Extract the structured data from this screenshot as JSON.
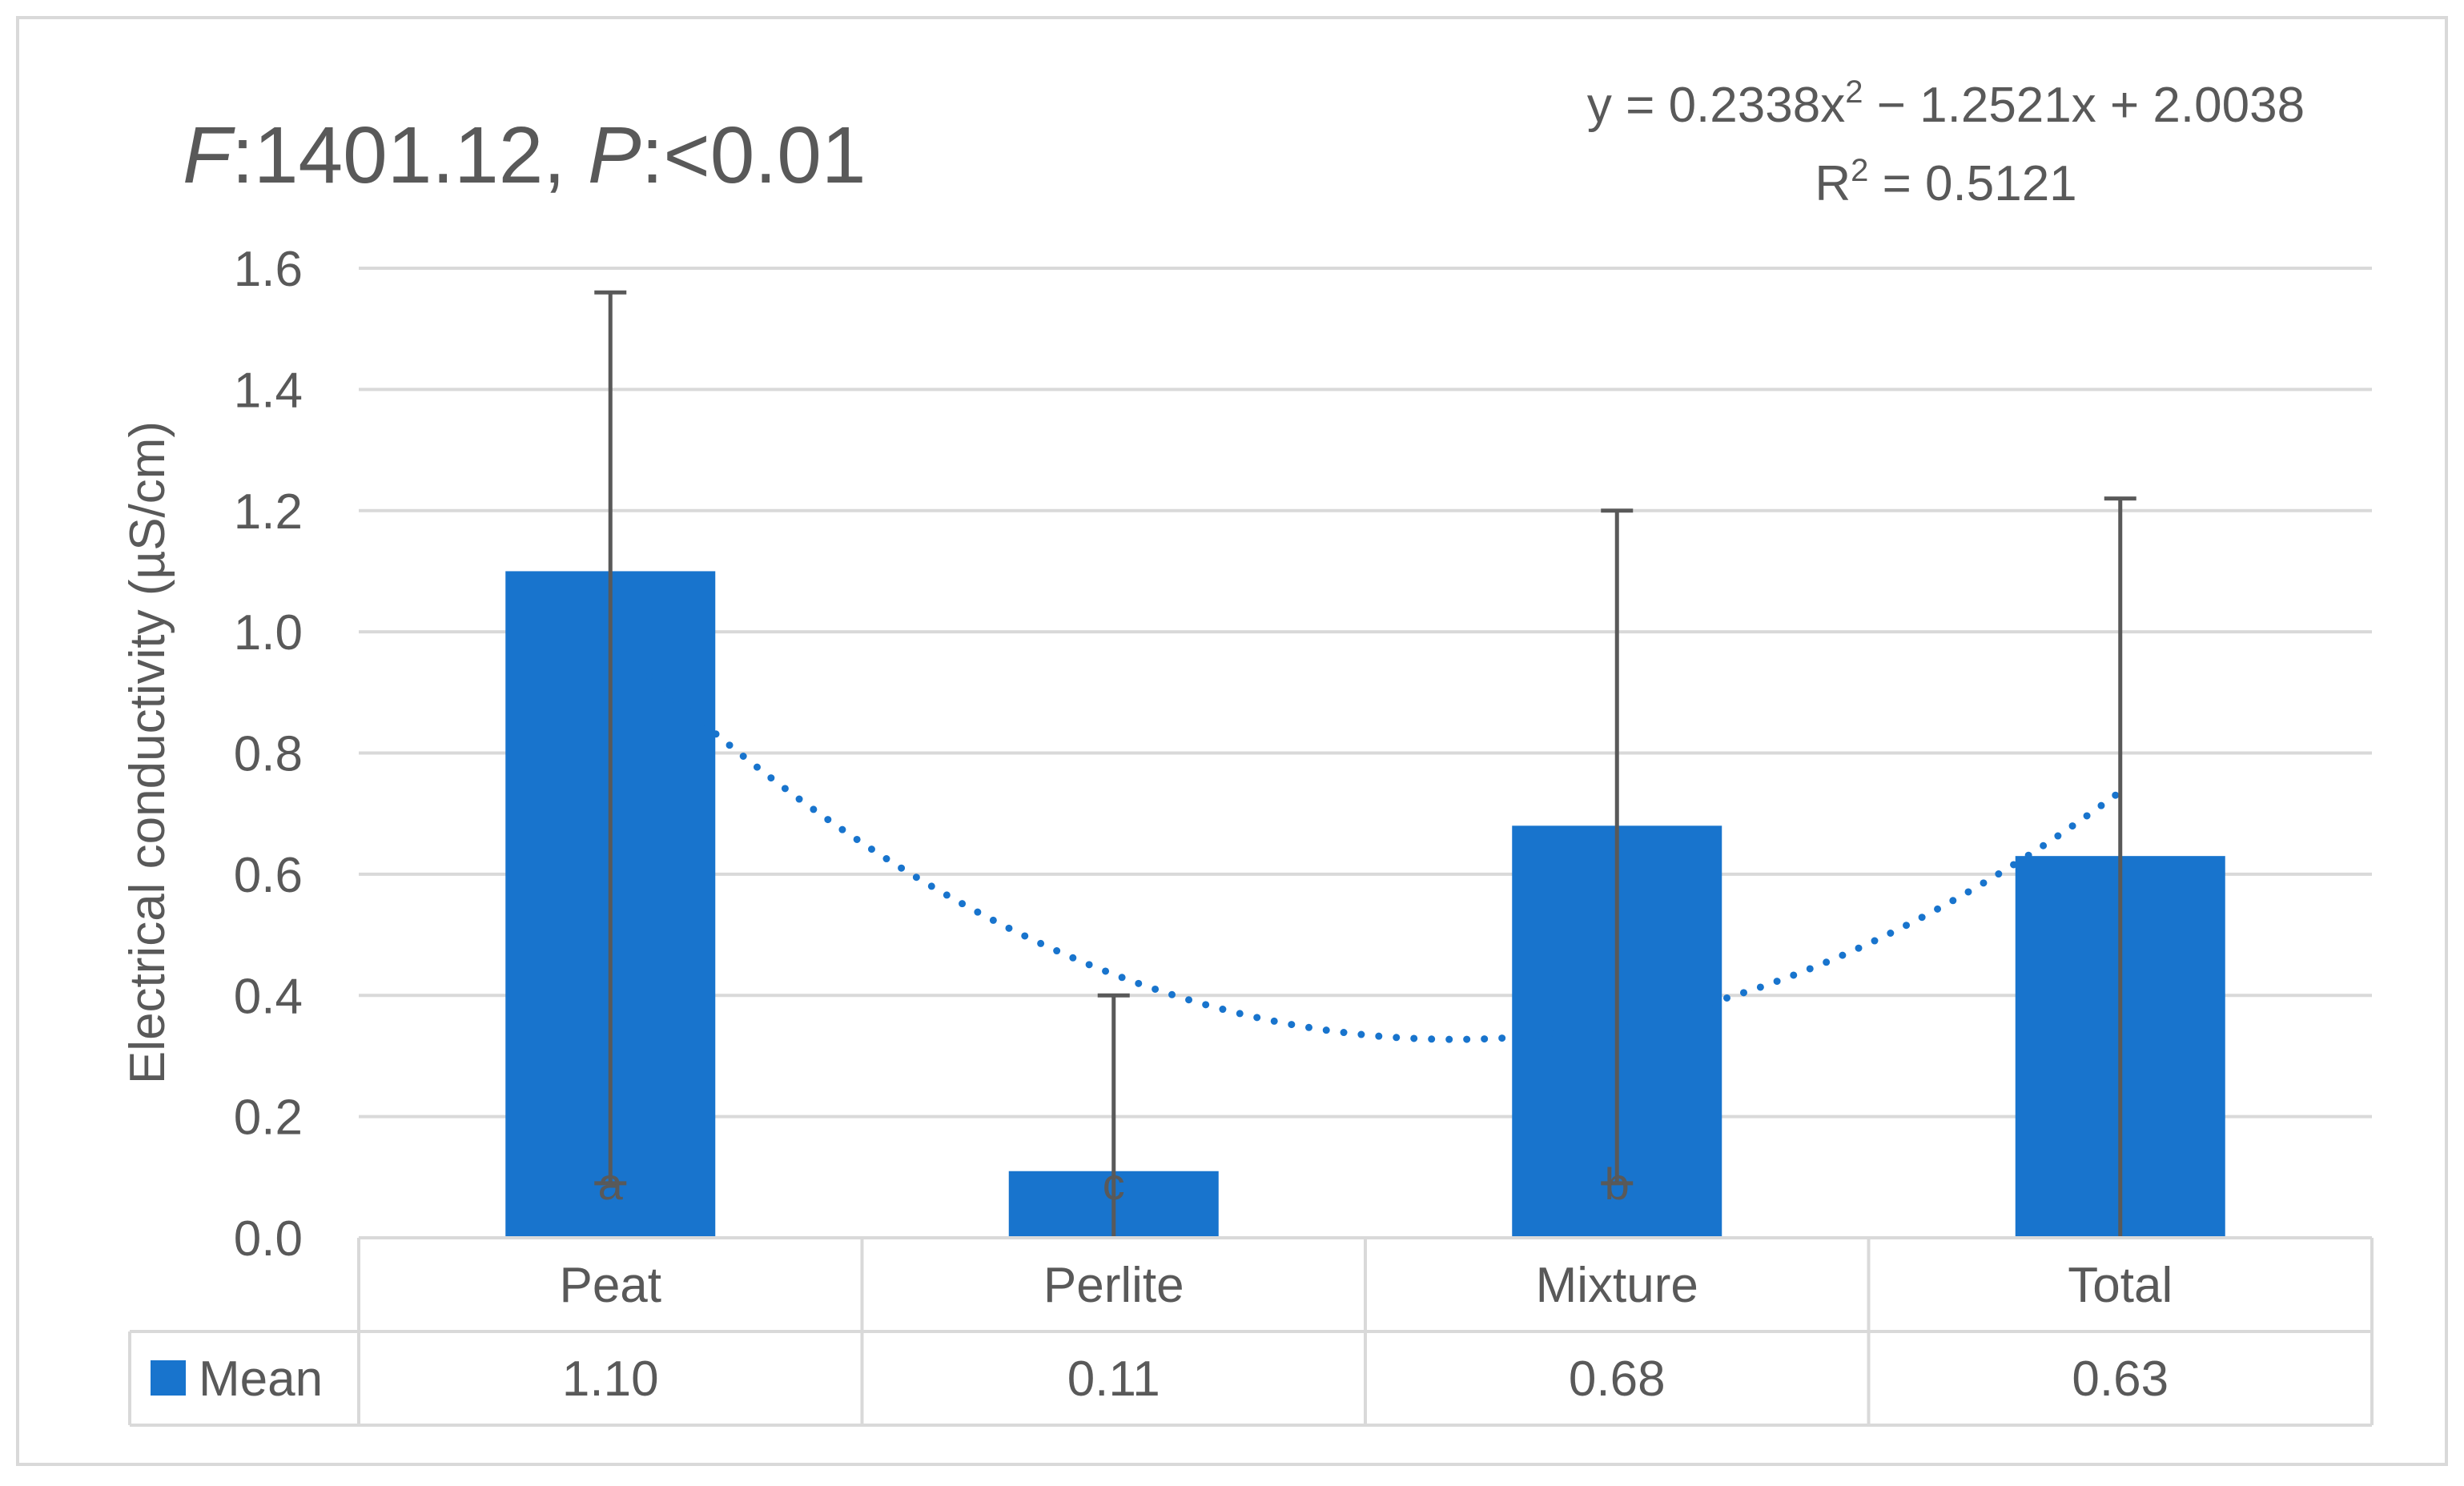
{
  "chart_data": {
    "type": "bar",
    "title_parts": {
      "f_letter": "F",
      "f_value": ":1401.12, ",
      "p_letter": "P",
      "p_value": ":<0.01"
    },
    "trendline": {
      "type": "polynomial",
      "order": 2,
      "coefficients": [
        0.2338,
        -1.2521,
        2.0038
      ],
      "equation_prefix": "y = 0.2338x",
      "equation_exp": "2",
      "equation_suffix": " − 1.2521x + 2.0038",
      "r2_prefix": "R",
      "r2_exp": "2",
      "r2_suffix": " = 0.5121",
      "color": "#1874CD"
    },
    "ylabel": "Electrical conductivity (µS/cm)",
    "ylim": [
      0,
      1.6
    ],
    "yticks": [
      0,
      0.2,
      0.4,
      0.6,
      0.8,
      1.0,
      1.2,
      1.4,
      1.6
    ],
    "ytick_labels": [
      "0.0",
      "0.2",
      "0.4",
      "0.6",
      "0.8",
      "1.0",
      "1.2",
      "1.4",
      "1.6"
    ],
    "categories": [
      "Peat",
      "Perlite",
      "Mixture",
      "Total"
    ],
    "series": [
      {
        "name": "Mean",
        "values": [
          1.1,
          0.11,
          0.68,
          0.63
        ],
        "error_upper": [
          1.56,
          0.4,
          1.2,
          1.22
        ],
        "error_lower": [
          0.09,
          0.0,
          0.09,
          0.0
        ],
        "letters": [
          "a",
          "c",
          "b",
          ""
        ],
        "color": "#1874CD"
      }
    ],
    "data_table": {
      "legend_label": "Mean",
      "values": [
        "1.10",
        "0.11",
        "0.68",
        "0.63"
      ]
    },
    "grid": true,
    "legend": "data-table"
  }
}
